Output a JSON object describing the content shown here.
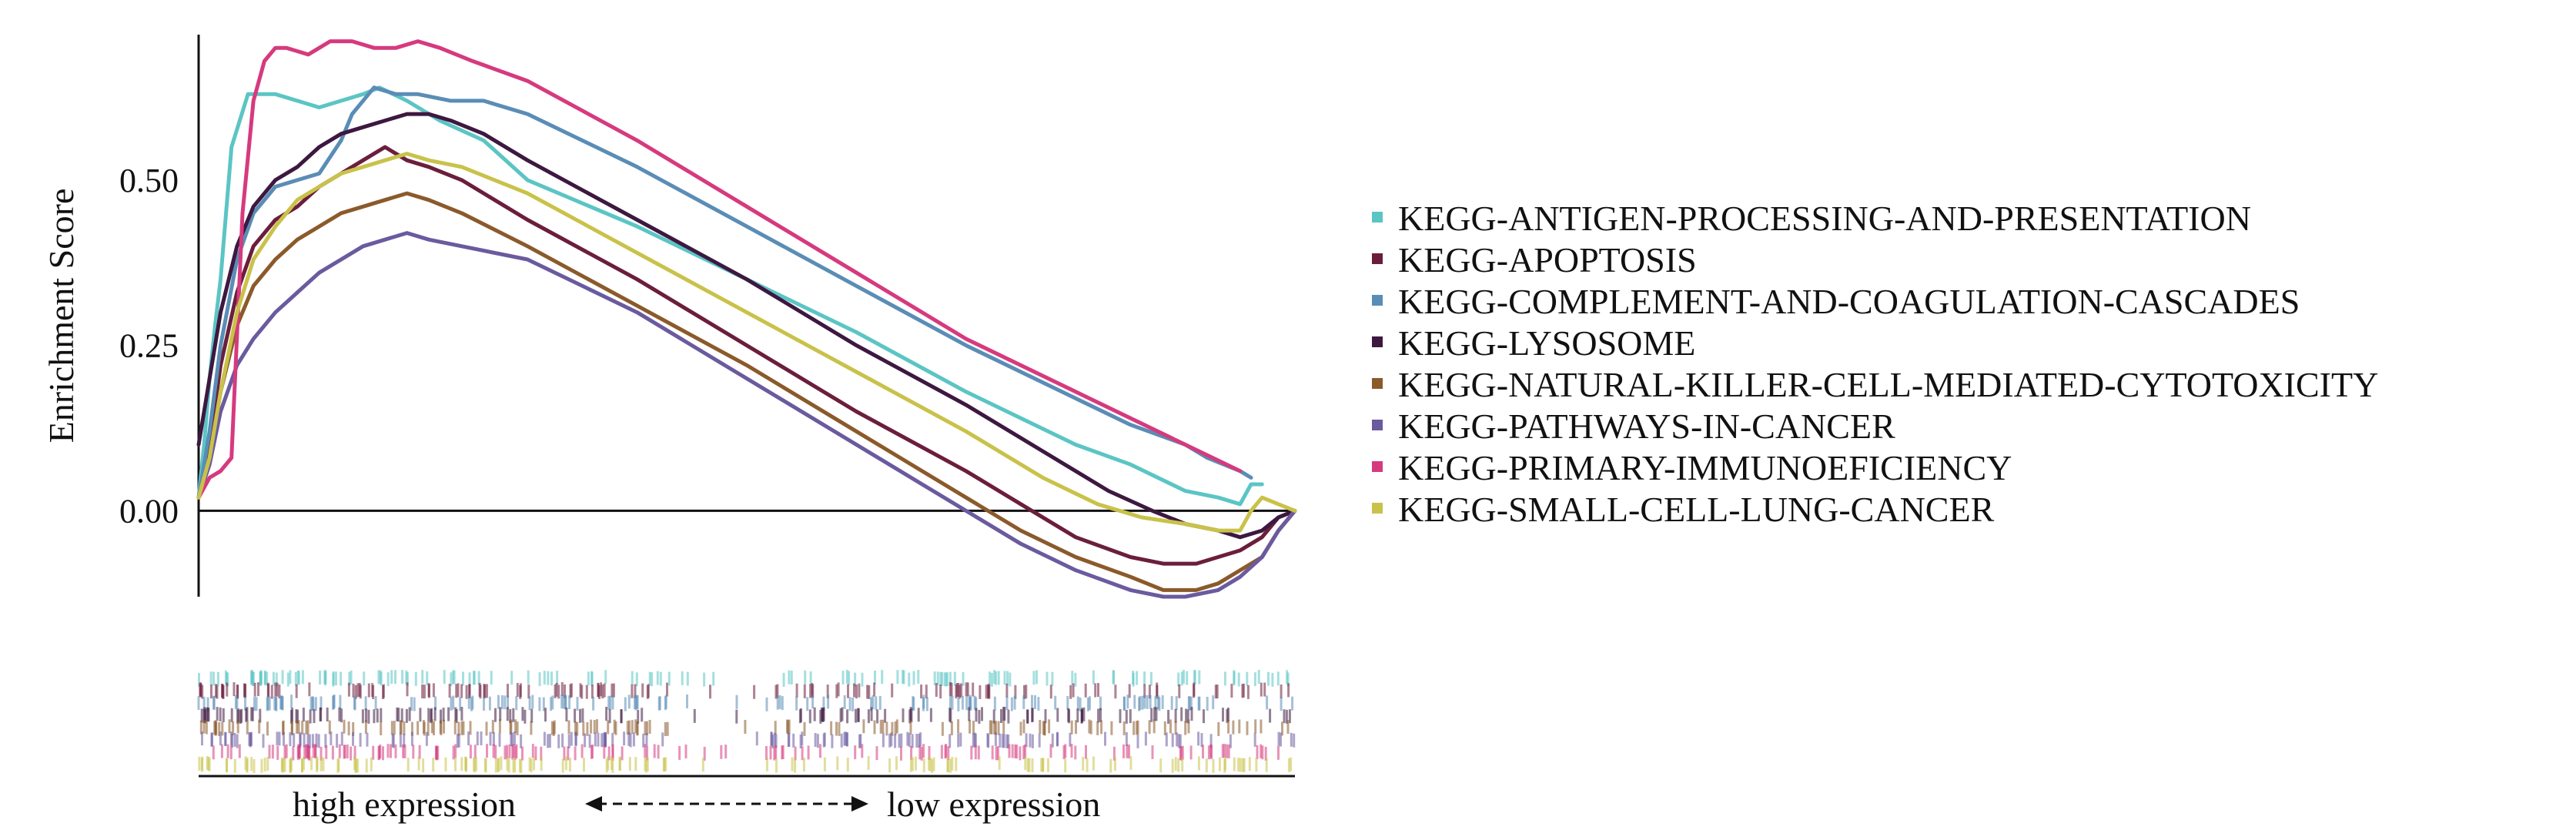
{
  "chart_data": {
    "type": "line",
    "title": "",
    "xlabel": "",
    "ylabel": "Enrichment Score",
    "ylim": [
      -0.13,
      0.72
    ],
    "xlim": [
      0,
      1
    ],
    "yticks": [
      {
        "value": 0.0,
        "label": "0.00"
      },
      {
        "value": 0.25,
        "label": "0.25"
      },
      {
        "value": 0.5,
        "label": "0.50"
      }
    ],
    "grid": false,
    "zero_line": true,
    "legend_position": "right",
    "expression_axis": {
      "left_label": "high expression",
      "right_label": "low expression"
    },
    "series": [
      {
        "name": "KEGG-ANTIGEN-PROCESSING-AND-PRESENTATION",
        "color": "#5BC5C4",
        "x": [
          0,
          0.005,
          0.01,
          0.015,
          0.02,
          0.03,
          0.045,
          0.055,
          0.07,
          0.09,
          0.11,
          0.13,
          0.15,
          0.165,
          0.19,
          0.22,
          0.26,
          0.3,
          0.4,
          0.5,
          0.6,
          0.7,
          0.8,
          0.85,
          0.9,
          0.93,
          0.95,
          0.96,
          0.97
        ],
        "y": [
          0.02,
          0.1,
          0.2,
          0.28,
          0.35,
          0.55,
          0.63,
          0.63,
          0.63,
          0.62,
          0.61,
          0.62,
          0.63,
          0.64,
          0.62,
          0.59,
          0.56,
          0.5,
          0.43,
          0.35,
          0.27,
          0.18,
          0.1,
          0.07,
          0.03,
          0.02,
          0.01,
          0.04,
          0.04
        ]
      },
      {
        "name": "KEGG-APOPTOSIS",
        "color": "#6B1E3C",
        "x": [
          0,
          0.01,
          0.02,
          0.035,
          0.05,
          0.07,
          0.09,
          0.11,
          0.13,
          0.15,
          0.17,
          0.19,
          0.21,
          0.24,
          0.3,
          0.4,
          0.5,
          0.6,
          0.7,
          0.75,
          0.8,
          0.85,
          0.88,
          0.91,
          0.93,
          0.95,
          0.97,
          0.985,
          1.0
        ],
        "y": [
          0.02,
          0.1,
          0.22,
          0.33,
          0.4,
          0.44,
          0.46,
          0.49,
          0.51,
          0.53,
          0.55,
          0.53,
          0.52,
          0.5,
          0.44,
          0.35,
          0.25,
          0.15,
          0.06,
          0.01,
          -0.04,
          -0.07,
          -0.08,
          -0.08,
          -0.07,
          -0.06,
          -0.04,
          -0.01,
          0.0
        ]
      },
      {
        "name": "KEGG-COMPLEMENT-AND-COAGULATION-CASCADES",
        "color": "#5A8DB6",
        "x": [
          0,
          0.01,
          0.02,
          0.035,
          0.05,
          0.07,
          0.09,
          0.11,
          0.13,
          0.14,
          0.16,
          0.18,
          0.2,
          0.23,
          0.26,
          0.3,
          0.4,
          0.5,
          0.6,
          0.7,
          0.8,
          0.85,
          0.9,
          0.92,
          0.95,
          0.96
        ],
        "y": [
          0.02,
          0.12,
          0.25,
          0.38,
          0.45,
          0.49,
          0.5,
          0.51,
          0.56,
          0.6,
          0.64,
          0.63,
          0.63,
          0.62,
          0.62,
          0.6,
          0.52,
          0.43,
          0.34,
          0.25,
          0.17,
          0.13,
          0.1,
          0.08,
          0.06,
          0.05
        ]
      },
      {
        "name": "KEGG-LYSOSOME",
        "color": "#3D1840",
        "x": [
          0,
          0.01,
          0.02,
          0.035,
          0.05,
          0.07,
          0.09,
          0.11,
          0.13,
          0.15,
          0.17,
          0.19,
          0.21,
          0.23,
          0.26,
          0.3,
          0.4,
          0.5,
          0.6,
          0.7,
          0.78,
          0.83,
          0.87,
          0.9,
          0.93,
          0.95,
          0.97,
          0.985,
          1.0
        ],
        "y": [
          0.1,
          0.2,
          0.3,
          0.4,
          0.46,
          0.5,
          0.52,
          0.55,
          0.57,
          0.58,
          0.59,
          0.6,
          0.6,
          0.59,
          0.57,
          0.53,
          0.44,
          0.35,
          0.25,
          0.16,
          0.08,
          0.03,
          0.0,
          -0.02,
          -0.03,
          -0.04,
          -0.03,
          -0.01,
          0.0
        ]
      },
      {
        "name": "KEGG-NATURAL-KILLER-CELL-MEDIATED-CYTOTOXICITY",
        "color": "#8B5A2B",
        "x": [
          0,
          0.01,
          0.02,
          0.035,
          0.05,
          0.07,
          0.09,
          0.11,
          0.13,
          0.15,
          0.17,
          0.19,
          0.21,
          0.24,
          0.3,
          0.4,
          0.5,
          0.6,
          0.7,
          0.75,
          0.8,
          0.85,
          0.88,
          0.91,
          0.93,
          0.95,
          0.97,
          0.985,
          1.0
        ],
        "y": [
          0.02,
          0.08,
          0.18,
          0.28,
          0.34,
          0.38,
          0.41,
          0.43,
          0.45,
          0.46,
          0.47,
          0.48,
          0.47,
          0.45,
          0.4,
          0.31,
          0.22,
          0.12,
          0.02,
          -0.03,
          -0.07,
          -0.1,
          -0.12,
          -0.12,
          -0.11,
          -0.09,
          -0.07,
          -0.03,
          0.0
        ]
      },
      {
        "name": "KEGG-PATHWAYS-IN-CANCER",
        "color": "#6A5A9E",
        "x": [
          0,
          0.01,
          0.02,
          0.035,
          0.05,
          0.07,
          0.09,
          0.11,
          0.13,
          0.15,
          0.17,
          0.19,
          0.21,
          0.24,
          0.3,
          0.4,
          0.5,
          0.6,
          0.7,
          0.75,
          0.8,
          0.85,
          0.88,
          0.9,
          0.93,
          0.95,
          0.97,
          0.985,
          1.0
        ],
        "y": [
          0.02,
          0.07,
          0.15,
          0.22,
          0.26,
          0.3,
          0.33,
          0.36,
          0.38,
          0.4,
          0.41,
          0.42,
          0.41,
          0.4,
          0.38,
          0.3,
          0.2,
          0.1,
          0.0,
          -0.05,
          -0.09,
          -0.12,
          -0.13,
          -0.13,
          -0.12,
          -0.1,
          -0.07,
          -0.03,
          0.0
        ]
      },
      {
        "name": "KEGG-PRIMARY-IMMUNOEFICIENCY",
        "color": "#D63A7E",
        "x": [
          0,
          0.01,
          0.02,
          0.03,
          0.04,
          0.05,
          0.06,
          0.07,
          0.08,
          0.1,
          0.12,
          0.14,
          0.16,
          0.18,
          0.2,
          0.22,
          0.25,
          0.3,
          0.4,
          0.5,
          0.6,
          0.7,
          0.8,
          0.9,
          0.95
        ],
        "y": [
          0.02,
          0.05,
          0.06,
          0.08,
          0.45,
          0.62,
          0.68,
          0.7,
          0.7,
          0.69,
          0.71,
          0.71,
          0.7,
          0.7,
          0.71,
          0.7,
          0.68,
          0.65,
          0.56,
          0.46,
          0.36,
          0.26,
          0.18,
          0.1,
          0.06
        ]
      },
      {
        "name": "KEGG-SMALL-CELL-LUNG-CANCER",
        "color": "#C9C24A",
        "x": [
          0,
          0.01,
          0.02,
          0.035,
          0.05,
          0.07,
          0.09,
          0.11,
          0.13,
          0.15,
          0.17,
          0.19,
          0.21,
          0.24,
          0.3,
          0.4,
          0.5,
          0.6,
          0.7,
          0.77,
          0.82,
          0.86,
          0.9,
          0.93,
          0.95,
          0.96,
          0.97,
          0.985,
          1.0
        ],
        "y": [
          0.02,
          0.08,
          0.18,
          0.3,
          0.38,
          0.43,
          0.47,
          0.49,
          0.51,
          0.52,
          0.53,
          0.54,
          0.53,
          0.52,
          0.48,
          0.39,
          0.3,
          0.21,
          0.12,
          0.05,
          0.01,
          -0.01,
          -0.02,
          -0.03,
          -0.03,
          0.0,
          0.02,
          0.01,
          0.0
        ]
      }
    ]
  }
}
